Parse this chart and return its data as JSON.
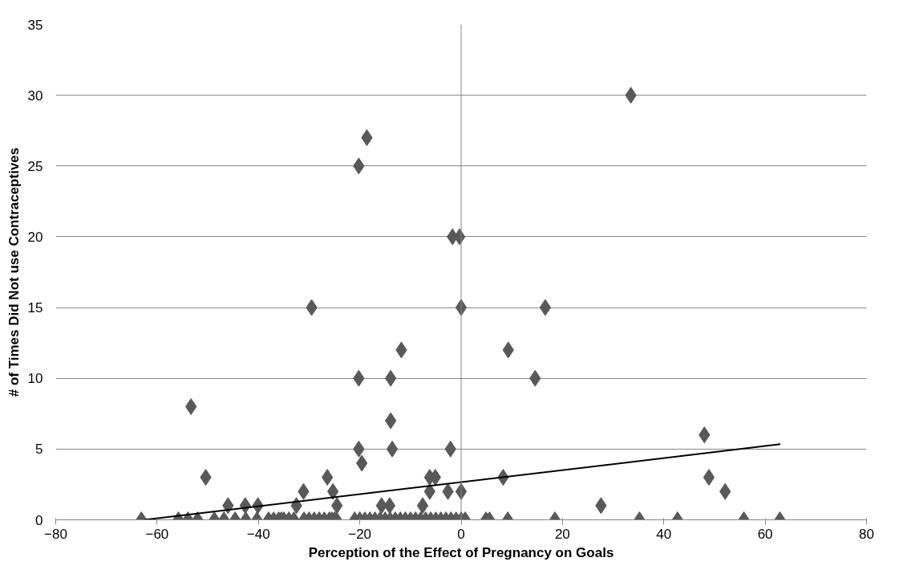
{
  "chart_data": {
    "type": "scatter",
    "xlabel": "Perception of the Effect of Pregnancy on Goals",
    "ylabel": "# of Times Did Not use Contraceptives",
    "xlim": [
      -80,
      80
    ],
    "xticks": [
      -80,
      -60,
      -40,
      -20,
      0,
      20,
      40,
      60,
      80
    ],
    "ylim": [
      0,
      35
    ],
    "yticks": [
      0,
      5,
      10,
      15,
      20,
      25,
      30,
      35
    ],
    "grid": "y",
    "marker": "diamond",
    "ref_lines": [
      {
        "axis": "x",
        "value": 0,
        "color": "#868686"
      }
    ],
    "series": [
      {
        "color": "#595959",
        "x": [
          -18.6,
          -20.2,
          -1.7,
          -0.3,
          33.5,
          -29.5,
          0,
          16.6,
          -11.8,
          9.3,
          -20.2,
          -13.9,
          14.6,
          -53.3,
          -13.9,
          48,
          -20.2,
          -13.6,
          -2.1,
          -19.6,
          -50.4,
          -26.4,
          -6.2,
          -5.1,
          8.3,
          48.9,
          -31.1,
          -25.3,
          -6.2,
          -2.6,
          0,
          52.1,
          -46,
          -42.6,
          -40.1,
          -32.5,
          -24.5,
          -15.7,
          -14.1,
          -7.6,
          27.6,
          -63.1,
          -55.8,
          -53.9,
          -52,
          -48.7,
          -46.8,
          -44.6,
          -42.5,
          -40.3,
          -38,
          -37,
          -36,
          -35.5,
          -35,
          -34,
          -33,
          -31,
          -30,
          -29,
          -28,
          -27,
          -26,
          -25.5,
          -25,
          -24.6,
          -21,
          -20,
          -19,
          -18,
          -17,
          -16,
          -15,
          -14,
          -13,
          -12,
          -11,
          -10,
          -9,
          -8,
          -7,
          -6,
          -5,
          -4,
          -3,
          -2,
          -1,
          0,
          0.8,
          4.9,
          5.6,
          9.2,
          18.5,
          35.2,
          42.7,
          55.8,
          62.9
        ],
        "values": [
          27,
          25,
          20,
          20,
          30,
          15,
          15,
          15,
          12,
          12,
          10,
          10,
          10,
          8,
          7,
          6,
          5,
          5,
          5,
          4,
          3,
          3,
          3,
          3,
          3,
          3,
          2,
          2,
          2,
          2,
          2,
          2,
          1,
          1,
          1,
          1,
          1,
          1,
          1,
          1,
          1,
          0,
          0,
          0,
          0,
          0,
          0,
          0,
          0,
          0,
          0,
          0,
          0,
          0,
          0,
          0,
          0,
          0,
          0,
          0,
          0,
          0,
          0,
          0,
          0,
          0,
          0,
          0,
          0,
          0,
          0,
          0,
          0,
          0,
          0,
          0,
          0,
          0,
          0,
          0,
          0,
          0,
          0,
          0,
          0,
          0,
          0,
          0,
          0,
          0,
          0,
          0,
          0,
          0,
          0,
          0,
          0
        ]
      },
      {
        "type": "line",
        "marker": "none",
        "color": "#000000",
        "x": [
          -62.5,
          63
        ],
        "values": [
          0,
          5.34
        ]
      }
    ]
  }
}
